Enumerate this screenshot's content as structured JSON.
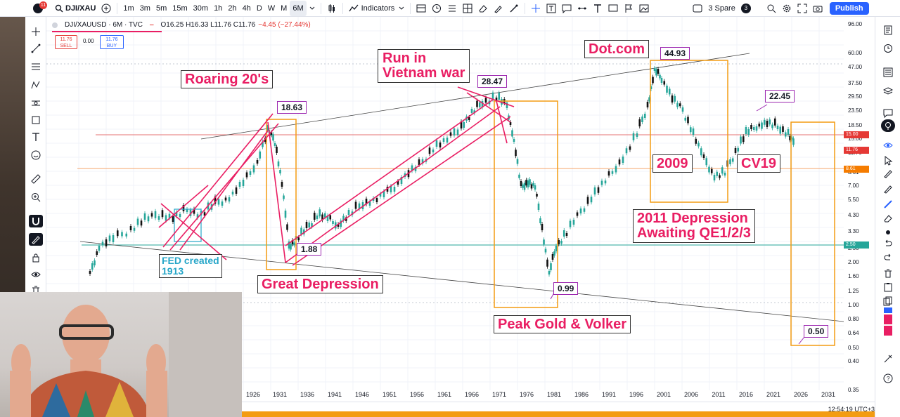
{
  "toolbar": {
    "symbol": "DJI/XAU",
    "intervals": [
      "1m",
      "3m",
      "5m",
      "15m",
      "30m",
      "1h",
      "2h",
      "4h",
      "D",
      "W",
      "M",
      "6M"
    ],
    "active_interval": "6M",
    "indicators_label": "Indicators",
    "layout_label": "3 Spare",
    "layout_count": "3",
    "publish_label": "Publish",
    "notification_count": "11"
  },
  "legend": {
    "symbol_line": "DJI/XAUUSD · 6M · TVC",
    "ohlc": "O16.25 H16.33 L11.76 C11.76",
    "change": "−4.45 (−27.44%)",
    "sell_price": "11.76",
    "sell_label": "SELL",
    "spread": "0.00",
    "buy_price": "11.76",
    "buy_label": "BUY"
  },
  "price_axis": {
    "labels": [
      "96.00",
      "60.00",
      "47.00",
      "37.50",
      "29.50",
      "23.50",
      "18.50",
      "15.00",
      "11.76",
      "8.61",
      "7.00",
      "5.50",
      "4.30",
      "3.30",
      "2.50",
      "2.00",
      "1.60",
      "1.25",
      "1.00",
      "0.80",
      "0.64",
      "0.50",
      "0.40",
      "0.35"
    ],
    "tags": [
      {
        "text": "15.00",
        "color": "#e53935"
      },
      {
        "text": "11.76",
        "color": "#e53935"
      },
      {
        "text": "8.61",
        "color": "#f57c00"
      },
      {
        "text": "2.50",
        "color": "#26a69a"
      }
    ]
  },
  "time_axis": {
    "labels": [
      "1926",
      "1931",
      "1936",
      "1941",
      "1946",
      "1951",
      "1956",
      "1961",
      "1966",
      "1971",
      "1976",
      "1981",
      "1986",
      "1991",
      "1996",
      "2001",
      "2006",
      "2011",
      "2016",
      "2021",
      "2026",
      "2031"
    ],
    "clock": "12:54:19 UTC+3"
  },
  "annotations": {
    "roaring": "Roaring 20's",
    "vietnam_line1": "Run in",
    "vietnam_line2": "Vietnam war",
    "dotcom": "Dot.com",
    "fed_line1": "FED created",
    "fed_line2": "1913",
    "great_depression": "Great Depression",
    "peak_gold": "Peak Gold & Volker",
    "y2009": "2009",
    "cv19": "CV19",
    "depression2011_line1": "2011 Depression",
    "depression2011_line2": "Awaiting QE1/2/3"
  },
  "value_tags": {
    "v1863": "18.63",
    "v188": "1.88",
    "v2847": "28.47",
    "v099": "0.99",
    "v4493": "44.93",
    "v2245": "22.45",
    "v050": "0.50"
  },
  "colors": {
    "annotation_text": "#e91e63",
    "fed_text": "#26a6c8",
    "box_orange": "#f39c12",
    "trend_pink": "#e91e63",
    "candle_up": "#26a69a",
    "candle_down": "#111111",
    "publish": "#2962ff"
  }
}
